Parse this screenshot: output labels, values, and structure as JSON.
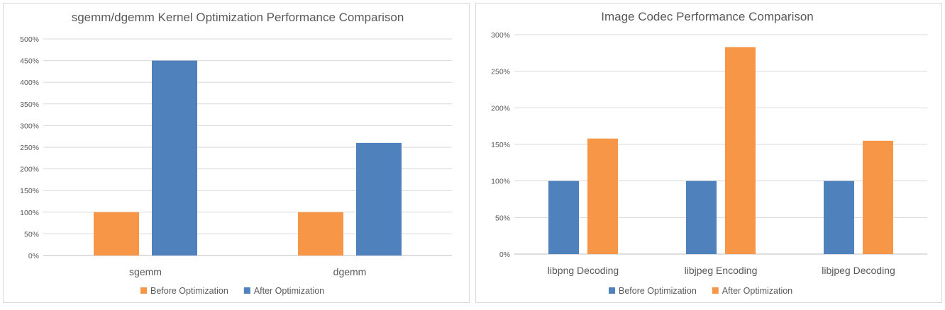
{
  "chart_data": [
    {
      "type": "bar",
      "title": "sgemm/dgemm Kernel Optimization Performance Comparison",
      "categories": [
        "sgemm",
        "dgemm"
      ],
      "series": [
        {
          "name": "Before Optimization",
          "color": "#F79646",
          "values": [
            100,
            100
          ]
        },
        {
          "name": "After Optimization",
          "color": "#4F81BD",
          "values": [
            450,
            260
          ]
        }
      ],
      "ylim": [
        0,
        500
      ],
      "yticks": [
        0,
        50,
        100,
        150,
        200,
        250,
        300,
        350,
        400,
        450,
        500
      ],
      "ytick_labels": [
        "0%",
        "50%",
        "100%",
        "150%",
        "200%",
        "250%",
        "300%",
        "350%",
        "400%",
        "450%",
        "500%"
      ],
      "grid": true,
      "legend_position": "bottom"
    },
    {
      "type": "bar",
      "title": "Image Codec Performance Comparison",
      "categories": [
        "libpng Decoding",
        "libjpeg Encoding",
        "libjpeg Decoding"
      ],
      "series": [
        {
          "name": "Before Optimization",
          "color": "#4F81BD",
          "values": [
            100,
            100,
            100
          ]
        },
        {
          "name": "After Optimization",
          "color": "#F79646",
          "values": [
            158,
            283,
            155
          ]
        }
      ],
      "ylim": [
        0,
        300
      ],
      "yticks": [
        0,
        50,
        100,
        150,
        200,
        250,
        300
      ],
      "ytick_labels": [
        "0%",
        "50%",
        "100%",
        "150%",
        "200%",
        "250%",
        "300%"
      ],
      "grid": true,
      "legend_position": "bottom"
    }
  ]
}
